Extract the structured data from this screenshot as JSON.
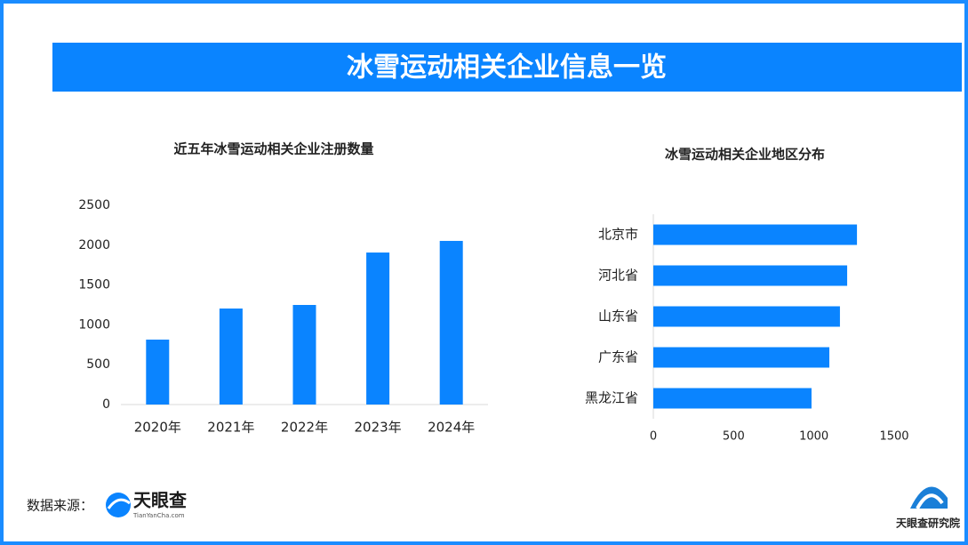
{
  "header": {
    "title": "冰雪运动相关企业信息一览"
  },
  "footer": {
    "source_label": "数据来源：",
    "logo_name": "天眼查",
    "logo_url": "TianYanCha.com",
    "institute": "天眼查研究院"
  },
  "chart_data": [
    {
      "type": "bar",
      "orientation": "vertical",
      "title": "近五年冰雪运动相关企业注册数量",
      "categories": [
        "2020年",
        "2021年",
        "2022年",
        "2023年",
        "2024年"
      ],
      "values": [
        815,
        1205,
        1250,
        1908,
        2054
      ],
      "color": "#0a84ff",
      "ylim": [
        0,
        2500
      ],
      "yticks": [
        0,
        500,
        1000,
        1500,
        2000,
        2500
      ],
      "grid": false
    },
    {
      "type": "bar",
      "orientation": "horizontal",
      "title": "冰雪运动相关企业地区分布",
      "categories": [
        "北京市",
        "河北省",
        "山东省",
        "广东省",
        "黑龙江省"
      ],
      "values": [
        1268,
        1207,
        1162,
        1096,
        985
      ],
      "color": "#0a84ff",
      "xlim": [
        0,
        1500
      ],
      "xticks": [
        0,
        500,
        1000,
        1500
      ],
      "grid": false
    }
  ]
}
